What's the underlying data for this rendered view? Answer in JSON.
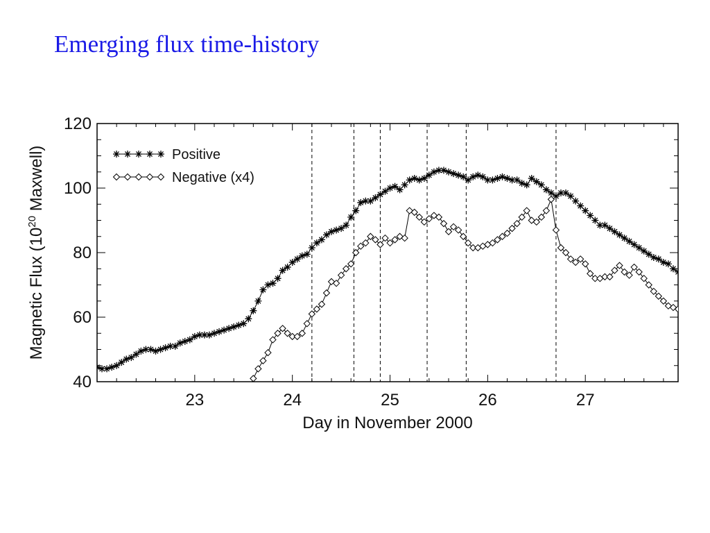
{
  "slide": {
    "title": "Emerging flux time-history"
  },
  "chart_data": {
    "type": "line",
    "title": "",
    "xlabel": "Day in November 2000",
    "ylabel_main": "Magnetic Flux (10",
    "ylabel_sup": "20",
    "ylabel_tail": " Maxwell)",
    "xlim": [
      22.0,
      27.95
    ],
    "ylim": [
      40,
      120
    ],
    "x_ticks": [
      23,
      24,
      25,
      26,
      27
    ],
    "y_ticks": [
      40,
      60,
      80,
      100,
      120
    ],
    "grid": false,
    "legend_position": "top-left",
    "event_lines": [
      24.2,
      24.63,
      24.9,
      25.38,
      25.78,
      26.7
    ],
    "series": [
      {
        "name": "Positive",
        "marker": "asterisk",
        "color": "#000000",
        "x": [
          22.0,
          22.05,
          22.1,
          22.15,
          22.2,
          22.25,
          22.3,
          22.35,
          22.4,
          22.45,
          22.5,
          22.55,
          22.6,
          22.65,
          22.7,
          22.75,
          22.8,
          22.85,
          22.9,
          22.95,
          23.0,
          23.05,
          23.1,
          23.15,
          23.2,
          23.25,
          23.3,
          23.35,
          23.4,
          23.45,
          23.5,
          23.55,
          23.6,
          23.65,
          23.7,
          23.75,
          23.8,
          23.85,
          23.9,
          23.95,
          24.0,
          24.05,
          24.1,
          24.15,
          24.2,
          24.25,
          24.3,
          24.35,
          24.4,
          24.45,
          24.5,
          24.55,
          24.6,
          24.65,
          24.7,
          24.75,
          24.8,
          24.85,
          24.9,
          24.95,
          25.0,
          25.05,
          25.1,
          25.15,
          25.2,
          25.25,
          25.3,
          25.35,
          25.4,
          25.45,
          25.5,
          25.55,
          25.6,
          25.65,
          25.7,
          25.75,
          25.8,
          25.85,
          25.9,
          25.95,
          26.0,
          26.05,
          26.1,
          26.15,
          26.2,
          26.25,
          26.3,
          26.35,
          26.4,
          26.45,
          26.5,
          26.55,
          26.6,
          26.65,
          26.7,
          26.75,
          26.8,
          26.85,
          26.9,
          26.95,
          27.0,
          27.05,
          27.1,
          27.15,
          27.2,
          27.25,
          27.3,
          27.35,
          27.4,
          27.45,
          27.5,
          27.55,
          27.6,
          27.65,
          27.7,
          27.75,
          27.8,
          27.85,
          27.9,
          27.95
        ],
        "y": [
          44.5,
          44,
          44,
          44.5,
          45,
          46,
          47,
          47.5,
          48.5,
          49.5,
          50,
          50,
          49.5,
          50,
          50.5,
          51,
          51,
          52,
          52.5,
          53,
          54,
          54.5,
          54.5,
          54.5,
          55,
          55.5,
          56,
          56.5,
          57,
          57.5,
          58,
          59.5,
          62,
          65,
          68.5,
          70,
          70.5,
          72,
          74.5,
          75.5,
          77,
          78,
          79,
          79.5,
          81.5,
          83,
          84,
          85.5,
          86.5,
          87,
          87.5,
          88.5,
          91,
          93,
          95.5,
          96,
          96,
          97,
          98,
          99,
          100,
          100.5,
          99.5,
          101,
          102.5,
          103,
          102.5,
          103,
          104,
          105,
          105.5,
          105.5,
          105,
          104.5,
          104,
          103.5,
          102.5,
          103.5,
          104,
          103.5,
          102.5,
          102.5,
          103,
          103.5,
          103,
          102.5,
          102.5,
          101.5,
          101,
          103,
          102,
          101,
          99.5,
          98.5,
          97.5,
          98.5,
          98.5,
          97.5,
          96,
          94.5,
          93,
          91.5,
          90,
          88.5,
          88.5,
          87.5,
          86.5,
          85.5,
          84.5,
          83.5,
          82.5,
          81.5,
          80.5,
          79.5,
          78.5,
          78,
          77,
          76.5,
          75,
          74
        ]
      },
      {
        "name": "Negative (x4)",
        "marker": "diamond",
        "color": "#000000",
        "x": [
          23.55,
          23.6,
          23.65,
          23.7,
          23.75,
          23.8,
          23.85,
          23.9,
          23.95,
          24.0,
          24.05,
          24.1,
          24.15,
          24.2,
          24.25,
          24.3,
          24.35,
          24.4,
          24.45,
          24.5,
          24.55,
          24.6,
          24.65,
          24.7,
          24.75,
          24.8,
          24.85,
          24.9,
          24.95,
          25.0,
          25.05,
          25.1,
          25.15,
          25.2,
          25.25,
          25.3,
          25.35,
          25.4,
          25.45,
          25.5,
          25.55,
          25.6,
          25.65,
          25.7,
          25.75,
          25.8,
          25.85,
          25.9,
          25.95,
          26.0,
          26.05,
          26.1,
          26.15,
          26.2,
          26.25,
          26.3,
          26.35,
          26.4,
          26.45,
          26.5,
          26.55,
          26.6,
          26.65,
          26.7,
          26.75,
          26.8,
          26.85,
          26.9,
          26.95,
          27.0,
          27.05,
          27.1,
          27.15,
          27.2,
          27.25,
          27.3,
          27.35,
          27.4,
          27.45,
          27.5,
          27.55,
          27.6,
          27.65,
          27.7,
          27.75,
          27.8,
          27.85,
          27.9,
          27.95
        ],
        "y": [
          37,
          41,
          44,
          46.5,
          49,
          53,
          55,
          56.5,
          55,
          54,
          54,
          55,
          58,
          61,
          62.5,
          64,
          67.5,
          71,
          70.5,
          73,
          75,
          76.5,
          80,
          82,
          83,
          85,
          84,
          82.5,
          84.5,
          83,
          84,
          85,
          84.5,
          93,
          92.5,
          91,
          89.5,
          90.5,
          91.5,
          91,
          89,
          86.5,
          88,
          87,
          85,
          83,
          81.5,
          81.5,
          82,
          82.5,
          83,
          84,
          85,
          86,
          87.5,
          89,
          91,
          93,
          90,
          89.5,
          91,
          93,
          96.5,
          87,
          81.5,
          80,
          78,
          77,
          78,
          76.5,
          73.5,
          72,
          72,
          72.5,
          72.5,
          74.5,
          76,
          74,
          73,
          75.5,
          74,
          72,
          70,
          68,
          66.5,
          65,
          63.5,
          63,
          62.5
        ]
      }
    ]
  }
}
